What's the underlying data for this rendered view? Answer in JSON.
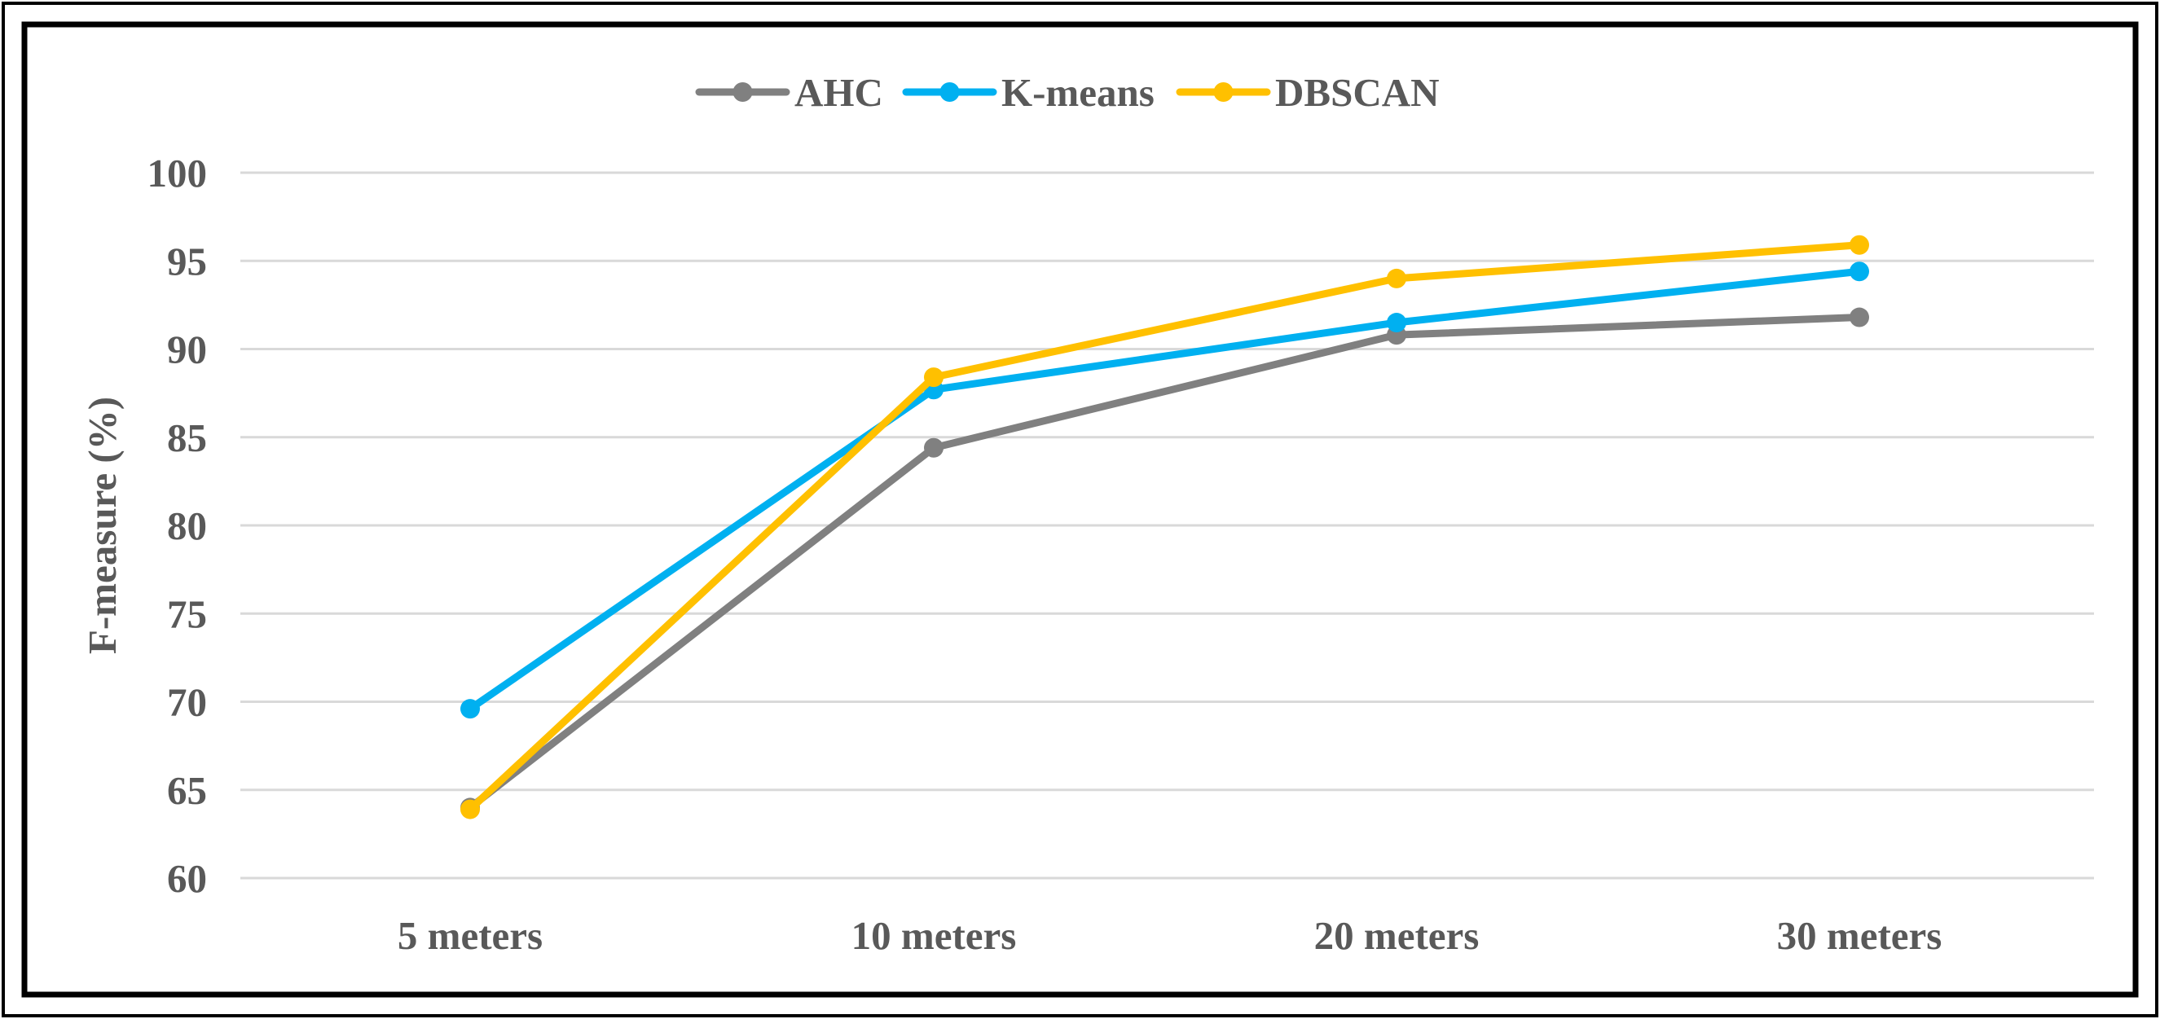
{
  "chart_data": {
    "type": "line",
    "title": "",
    "xlabel": "",
    "ylabel": "F-measure (%)",
    "categories": [
      "5 meters",
      "10 meters",
      "20 meters",
      "30 meters"
    ],
    "ylim": [
      60,
      100
    ],
    "yticks": [
      60,
      65,
      70,
      75,
      80,
      85,
      90,
      95,
      100
    ],
    "grid": true,
    "legend_position": "top-center",
    "series": [
      {
        "name": "AHC",
        "color": "#808080",
        "values": [
          64.0,
          84.4,
          90.8,
          91.8
        ]
      },
      {
        "name": "K-means",
        "color": "#00b0f0",
        "values": [
          69.6,
          87.7,
          91.5,
          94.4
        ]
      },
      {
        "name": "DBSCAN",
        "color": "#ffc000",
        "values": [
          63.9,
          88.4,
          94.0,
          95.9
        ]
      }
    ]
  }
}
